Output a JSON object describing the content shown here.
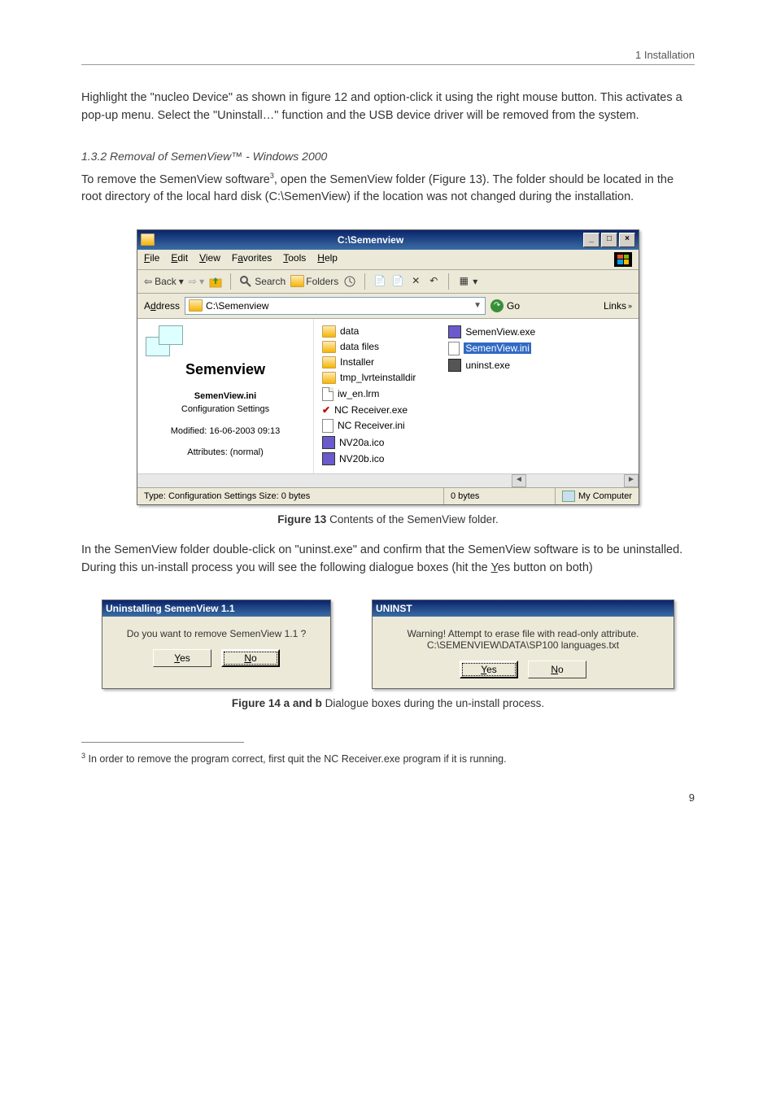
{
  "header": {
    "right": "1 Installation"
  },
  "para1": "Highlight the \"nucleo Device\" as shown in figure 12 and option-click it using the right mouse button. This activates a pop-up menu. Select the \"Uninstall…\" function and the USB device driver will be removed from the system.",
  "subsection": "1.3.2   Removal of SemenView™ - Windows 2000",
  "para2a": "To remove the SemenView software",
  "para2sup": "3",
  "para2b": ", open the SemenView folder (Figure 13). The folder should be located in the root directory of the local hard disk (C:\\SemenView) if the location was not changed during the installation.",
  "explorer": {
    "title": "C:\\Semenview",
    "menus": {
      "file": "File",
      "edit": "Edit",
      "view": "View",
      "favorites": "Favorites",
      "tools": "Tools",
      "help": "Help"
    },
    "toolbar": {
      "back": "Back",
      "search": "Search",
      "folders": "Folders"
    },
    "address_label": "Address",
    "address_value": "C:\\Semenview",
    "go": "Go",
    "links": "Links",
    "left": {
      "foldername": "Semenview",
      "filename": "SemenView.ini",
      "filetype": "Configuration Settings",
      "modified": "Modified: 16-06-2003 09:13",
      "attrs": "Attributes: (normal)"
    },
    "files_col1": [
      {
        "icon": "folder",
        "name": "data"
      },
      {
        "icon": "folder",
        "name": "data files"
      },
      {
        "icon": "folder",
        "name": "Installer"
      },
      {
        "icon": "folder",
        "name": "tmp_lvrteinstalldir"
      },
      {
        "icon": "file",
        "name": "iw_en.lrm"
      },
      {
        "icon": "check",
        "name": "NC Receiver.exe"
      },
      {
        "icon": "ini",
        "name": "NC Receiver.ini"
      },
      {
        "icon": "exe",
        "name": "NV20a.ico"
      },
      {
        "icon": "exe",
        "name": "NV20b.ico"
      }
    ],
    "files_col2": [
      {
        "icon": "exe",
        "name": "SemenView.exe"
      },
      {
        "icon": "ini",
        "name": "SemenView.ini",
        "selected": true
      },
      {
        "icon": "uninst",
        "name": "uninst.exe"
      }
    ],
    "status": {
      "type": "Type: Configuration Settings Size: 0 bytes",
      "size": "0 bytes",
      "loc": "My Computer"
    }
  },
  "fig13": {
    "label": "Figure 13",
    "text": " Contents of the SemenView folder."
  },
  "para3a": "In the SemenView folder double-click on \"uninst.exe\" and confirm that the SemenView software is to be uninstalled. During this un-install process you will see the following dialogue boxes (hit the ",
  "para3u": "Y",
  "para3b": "es button on both)",
  "dlg1": {
    "title": "Uninstalling SemenView 1.1",
    "msg": "Do you want to remove SemenView 1.1 ?",
    "yes": "Yes",
    "no": "No"
  },
  "dlg2": {
    "title": "UNINST",
    "msg1": "Warning! Attempt to erase file with read-only attribute.",
    "msg2": "C:\\SEMENVIEW\\DATA\\SP100 languages.txt",
    "yes": "Yes",
    "no": "No"
  },
  "fig14": {
    "label": "Figure 14 a and b",
    "text": " Dialogue boxes during the un-install process."
  },
  "footnote": {
    "num": "3",
    "text": " In order to remove the program correct, first quit the NC Receiver.exe program if it is running."
  },
  "pagenum": "9",
  "colors": {
    "page_bg": "#ffffff",
    "titlebar_start": "#0a246a",
    "titlebar_end": "#3b6ea5",
    "win_bg": "#ece9d8",
    "selection": "#316ac5"
  }
}
